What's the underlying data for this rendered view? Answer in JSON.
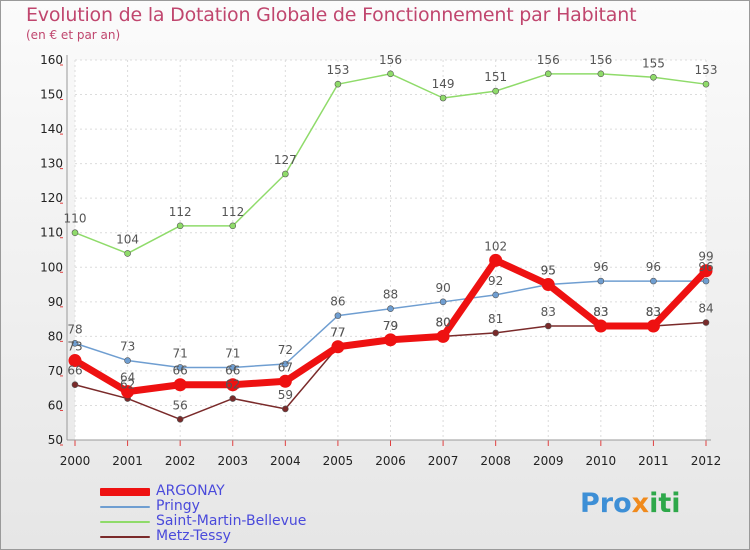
{
  "title": "Evolution de la Dotation Globale de Fonctionnement par Habitant",
  "subtitle": "(en € et par an)",
  "logo": {
    "p1": "Pro",
    "p2": "x",
    "p3": "iti"
  },
  "chart_data": {
    "type": "line",
    "x": [
      "2000",
      "2001",
      "2002",
      "2003",
      "2004",
      "2005",
      "2006",
      "2007",
      "2008",
      "2009",
      "2010",
      "2011",
      "2012"
    ],
    "ylim": [
      50,
      160
    ],
    "yticks": [
      50,
      60,
      70,
      80,
      90,
      100,
      110,
      120,
      130,
      140,
      150,
      160
    ],
    "grid": true,
    "legend_position": "bottom-left",
    "series": [
      {
        "name": "Saint-Martin-Bellevue",
        "color": "#8fdb6a",
        "width": 1.5,
        "values": [
          110,
          104,
          112,
          112,
          127,
          153,
          156,
          149,
          151,
          156,
          156,
          155,
          153
        ]
      },
      {
        "name": "Pringy",
        "color": "#6f9ed1",
        "width": 1.5,
        "values": [
          78,
          73,
          71,
          71,
          72,
          86,
          88,
          90,
          92,
          95,
          96,
          96,
          96
        ]
      },
      {
        "name": "Metz-Tessy",
        "color": "#7a2a2a",
        "width": 1.5,
        "values": [
          66,
          62,
          56,
          62,
          59,
          77,
          79,
          80,
          81,
          83,
          83,
          83,
          84
        ]
      },
      {
        "name": "ARGONAY",
        "color": "#ee1111",
        "width": 7,
        "values": [
          73,
          64,
          66,
          66,
          67,
          77,
          79,
          80,
          102,
          95,
          83,
          83,
          99
        ]
      }
    ],
    "legend_order": [
      "ARGONAY",
      "Pringy",
      "Saint-Martin-Bellevue",
      "Metz-Tessy"
    ]
  }
}
